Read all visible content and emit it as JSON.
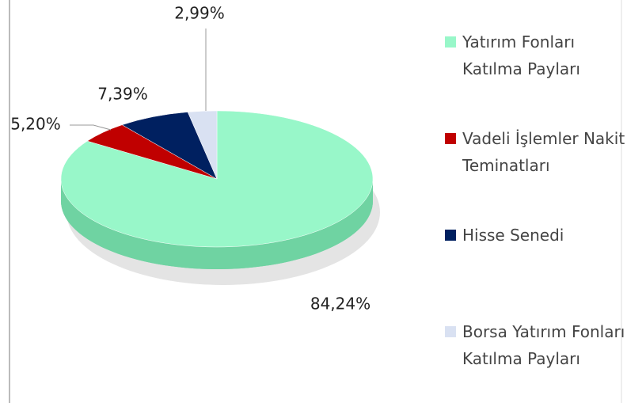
{
  "chart_data": {
    "type": "pie",
    "categories": [
      "Yatırım Fonları Katılma Payları",
      "Vadeli İşlemler Nakit Teminatları",
      "Hisse Senedi",
      "Borsa Yatırım Fonları Katılma Payları"
    ],
    "values": [
      84.24,
      5.2,
      7.39,
      2.99
    ],
    "value_labels": [
      "84,24%",
      "5,20%",
      "7,39%",
      "2,99%"
    ],
    "colors": [
      "#98f7c9",
      "#c00000",
      "#002060",
      "#d9e1f2"
    ],
    "legend": "right"
  }
}
